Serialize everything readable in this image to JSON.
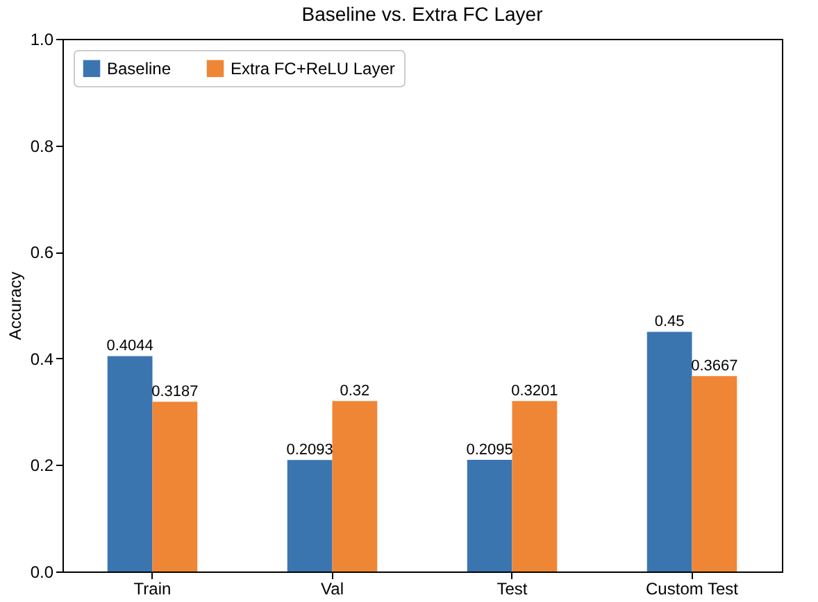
{
  "chart_data": {
    "type": "bar",
    "title": "Baseline vs. Extra FC Layer",
    "ylabel": "Accuracy",
    "categories": [
      "Train",
      "Val",
      "Test",
      "Custom Test"
    ],
    "series": [
      {
        "name": "Baseline",
        "color": "#3a75b0",
        "values": [
          0.4044,
          0.2093,
          0.2095,
          0.45
        ]
      },
      {
        "name": "Extra FC+ReLU Layer",
        "color": "#ef8636",
        "values": [
          0.3187,
          0.32,
          0.3201,
          0.3667
        ]
      }
    ],
    "ylim": [
      0,
      1
    ],
    "yticks": [
      {
        "value": 0,
        "label": "0.0"
      },
      0.2,
      0.4,
      0.6,
      0.8,
      {
        "value": 1,
        "label": "1.0"
      }
    ],
    "legend": "top left",
    "data_labels": true,
    "grid": false
  }
}
